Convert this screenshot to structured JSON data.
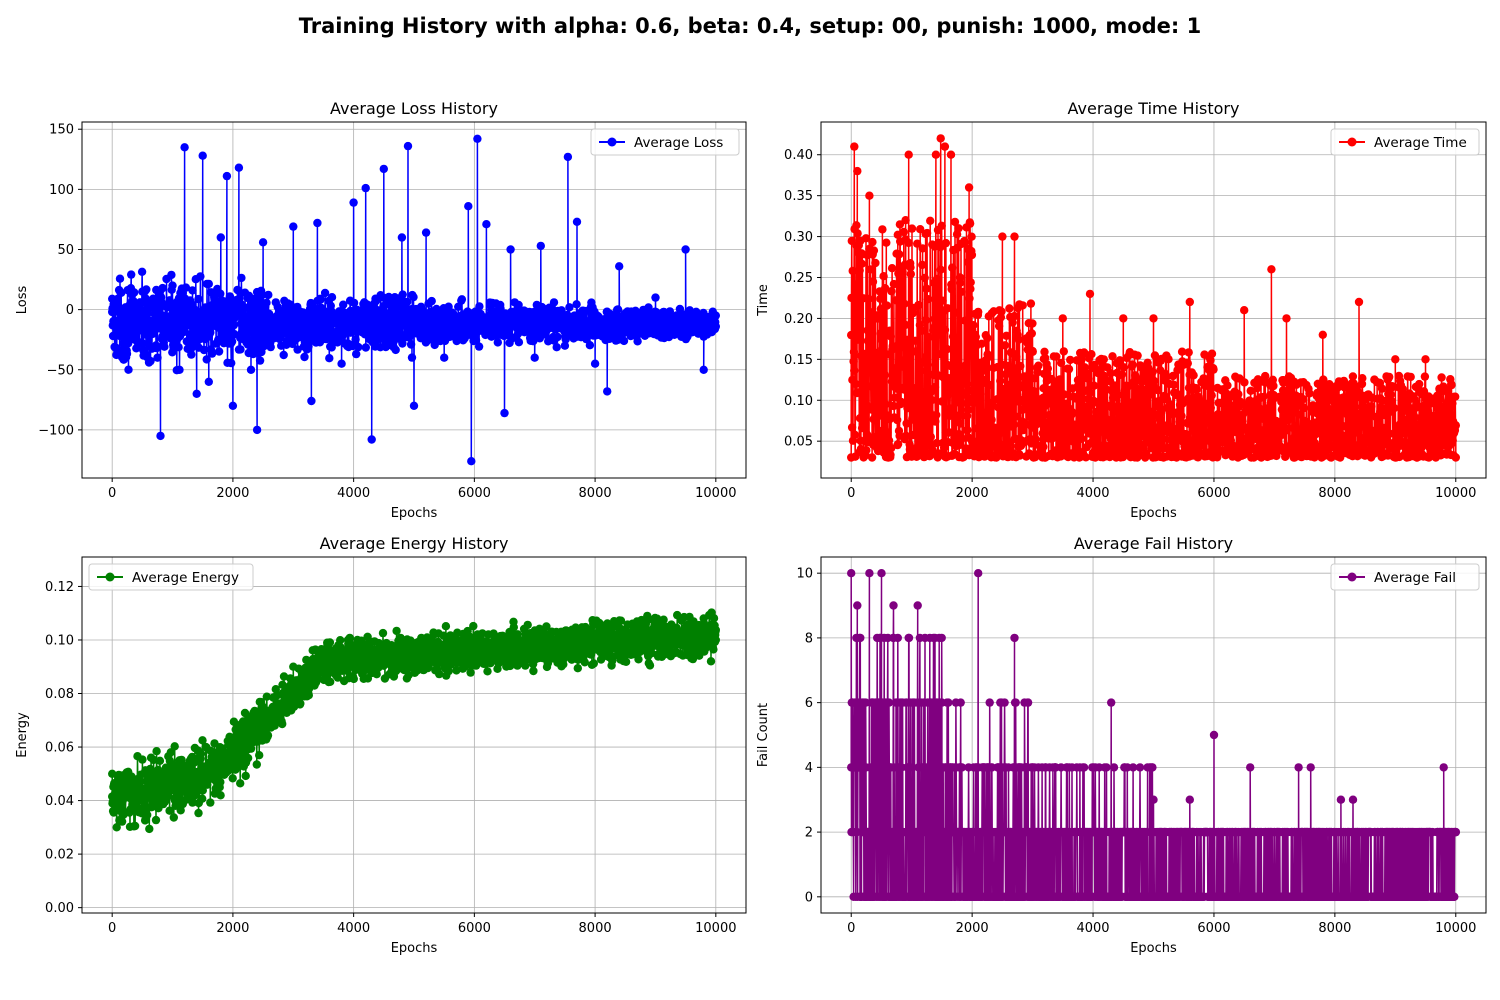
{
  "suptitle": "Training History with alpha: 0.6, beta: 0.4, setup: 00, punish: 1000, mode: 1",
  "chart_data": [
    {
      "type": "line",
      "title": "Average Loss History",
      "xlabel": "Epochs",
      "ylabel": "Loss",
      "xlim": [
        -500,
        10500
      ],
      "ylim": [
        -140,
        156
      ],
      "xticks": [
        0,
        2000,
        4000,
        6000,
        8000,
        10000
      ],
      "yticks": [
        -100,
        -50,
        0,
        50,
        100,
        150
      ],
      "ytick_labels": [
        "−100",
        "−50",
        "0",
        "50",
        "100",
        "150"
      ],
      "grid": true,
      "legend_position": "upper-right",
      "series": [
        {
          "name": "Average Loss",
          "color": "#0000ff",
          "marker": "circle",
          "approx_points": [
            [
              0,
              -2
            ],
            [
              250,
              -25
            ],
            [
              500,
              15
            ],
            [
              750,
              -40
            ],
            [
              800,
              -105
            ],
            [
              1000,
              20
            ],
            [
              1200,
              135
            ],
            [
              1400,
              -70
            ],
            [
              1500,
              128
            ],
            [
              1600,
              -60
            ],
            [
              1800,
              60
            ],
            [
              1900,
              111
            ],
            [
              2000,
              -80
            ],
            [
              2100,
              118
            ],
            [
              2300,
              -50
            ],
            [
              2400,
              -100
            ],
            [
              2500,
              56
            ],
            [
              2800,
              -30
            ],
            [
              3000,
              69
            ],
            [
              3300,
              -76
            ],
            [
              3400,
              72
            ],
            [
              3800,
              -45
            ],
            [
              4000,
              89
            ],
            [
              4200,
              101
            ],
            [
              4300,
              -108
            ],
            [
              4500,
              117
            ],
            [
              4800,
              60
            ],
            [
              4900,
              136
            ],
            [
              5000,
              -80
            ],
            [
              5200,
              64
            ],
            [
              5500,
              -40
            ],
            [
              5900,
              86
            ],
            [
              5950,
              -126
            ],
            [
              6050,
              142
            ],
            [
              6200,
              71
            ],
            [
              6500,
              -86
            ],
            [
              6600,
              50
            ],
            [
              7000,
              -40
            ],
            [
              7100,
              53
            ],
            [
              7500,
              -30
            ],
            [
              7550,
              127
            ],
            [
              7700,
              73
            ],
            [
              8000,
              -45
            ],
            [
              8200,
              -68
            ],
            [
              8400,
              36
            ],
            [
              9000,
              10
            ],
            [
              9500,
              50
            ],
            [
              9800,
              -50
            ],
            [
              10000,
              -5
            ]
          ]
        }
      ]
    },
    {
      "type": "line",
      "title": "Average Time History",
      "xlabel": "Epochs",
      "ylabel": "Time",
      "xlim": [
        -500,
        10500
      ],
      "ylim": [
        0.005,
        0.44
      ],
      "xticks": [
        0,
        2000,
        4000,
        6000,
        8000,
        10000
      ],
      "yticks": [
        0.05,
        0.1,
        0.15,
        0.2,
        0.25,
        0.3,
        0.35,
        0.4
      ],
      "ytick_labels": [
        "0.05",
        "0.10",
        "0.15",
        "0.20",
        "0.25",
        "0.30",
        "0.35",
        "0.40"
      ],
      "grid": true,
      "legend_position": "upper-right",
      "series": [
        {
          "name": "Average Time",
          "color": "#ff0000",
          "marker": "circle",
          "approx_points": [
            [
              0,
              0.03
            ],
            [
              50,
              0.41
            ],
            [
              100,
              0.38
            ],
            [
              200,
              0.15
            ],
            [
              300,
              0.35
            ],
            [
              500,
              0.05
            ],
            [
              900,
              0.32
            ],
            [
              950,
              0.4
            ],
            [
              1200,
              0.05
            ],
            [
              1400,
              0.4
            ],
            [
              1480,
              0.42
            ],
            [
              1550,
              0.41
            ],
            [
              1650,
              0.4
            ],
            [
              1800,
              0.25
            ],
            [
              1950,
              0.36
            ],
            [
              2000,
              0.05
            ],
            [
              2500,
              0.3
            ],
            [
              2700,
              0.3
            ],
            [
              3000,
              0.16
            ],
            [
              3500,
              0.2
            ],
            [
              3950,
              0.23
            ],
            [
              4500,
              0.2
            ],
            [
              5000,
              0.2
            ],
            [
              5600,
              0.22
            ],
            [
              6500,
              0.21
            ],
            [
              6950,
              0.26
            ],
            [
              7200,
              0.2
            ],
            [
              7800,
              0.18
            ],
            [
              8400,
              0.22
            ],
            [
              9000,
              0.15
            ],
            [
              9500,
              0.15
            ],
            [
              10000,
              0.03
            ]
          ]
        }
      ]
    },
    {
      "type": "line",
      "title": "Average Energy History",
      "xlabel": "Epochs",
      "ylabel": "Energy",
      "xlim": [
        -500,
        10500
      ],
      "ylim": [
        -0.002,
        0.131
      ],
      "xticks": [
        0,
        2000,
        4000,
        6000,
        8000,
        10000
      ],
      "yticks": [
        0.0,
        0.02,
        0.04,
        0.06,
        0.08,
        0.1,
        0.12
      ],
      "ytick_labels": [
        "0.00",
        "0.02",
        "0.04",
        "0.06",
        "0.08",
        "0.10",
        "0.12"
      ],
      "grid": true,
      "legend_position": "upper-left",
      "series": [
        {
          "name": "Average Energy",
          "color": "#008000",
          "marker": "circle",
          "approx_points": [
            [
              0,
              0.05
            ],
            [
              500,
              0.04
            ],
            [
              1000,
              0.045
            ],
            [
              1500,
              0.05
            ],
            [
              2000,
              0.055
            ],
            [
              2500,
              0.075
            ],
            [
              3000,
              0.09
            ],
            [
              3500,
              0.095
            ],
            [
              4000,
              0.095
            ],
            [
              5000,
              0.097
            ],
            [
              6000,
              0.098
            ],
            [
              7000,
              0.1
            ],
            [
              8000,
              0.1
            ],
            [
              9000,
              0.1
            ],
            [
              10000,
              0.1
            ]
          ]
        }
      ]
    },
    {
      "type": "line",
      "title": "Average Fail History",
      "xlabel": "Epochs",
      "ylabel": "Fail Count",
      "xlim": [
        -500,
        10500
      ],
      "ylim": [
        -0.5,
        10.5
      ],
      "xticks": [
        0,
        2000,
        4000,
        6000,
        8000,
        10000
      ],
      "yticks": [
        0,
        2,
        4,
        6,
        8,
        10
      ],
      "ytick_labels": [
        "0",
        "2",
        "4",
        "6",
        "8",
        "10"
      ],
      "grid": true,
      "legend_position": "upper-right",
      "series": [
        {
          "name": "Average Fail",
          "color": "#800080",
          "marker": "circle",
          "approx_points": [
            [
              0,
              10
            ],
            [
              100,
              9
            ],
            [
              300,
              10
            ],
            [
              500,
              10
            ],
            [
              700,
              9
            ],
            [
              1100,
              9
            ],
            [
              1300,
              8
            ],
            [
              1500,
              6
            ],
            [
              2100,
              10
            ],
            [
              2700,
              8
            ],
            [
              3000,
              4
            ],
            [
              4300,
              6
            ],
            [
              5000,
              3
            ],
            [
              5600,
              3
            ],
            [
              6000,
              5
            ],
            [
              6600,
              4
            ],
            [
              7400,
              4
            ],
            [
              7600,
              4
            ],
            [
              8100,
              3
            ],
            [
              8300,
              3
            ],
            [
              9800,
              4
            ],
            [
              10000,
              2
            ]
          ]
        }
      ]
    }
  ]
}
